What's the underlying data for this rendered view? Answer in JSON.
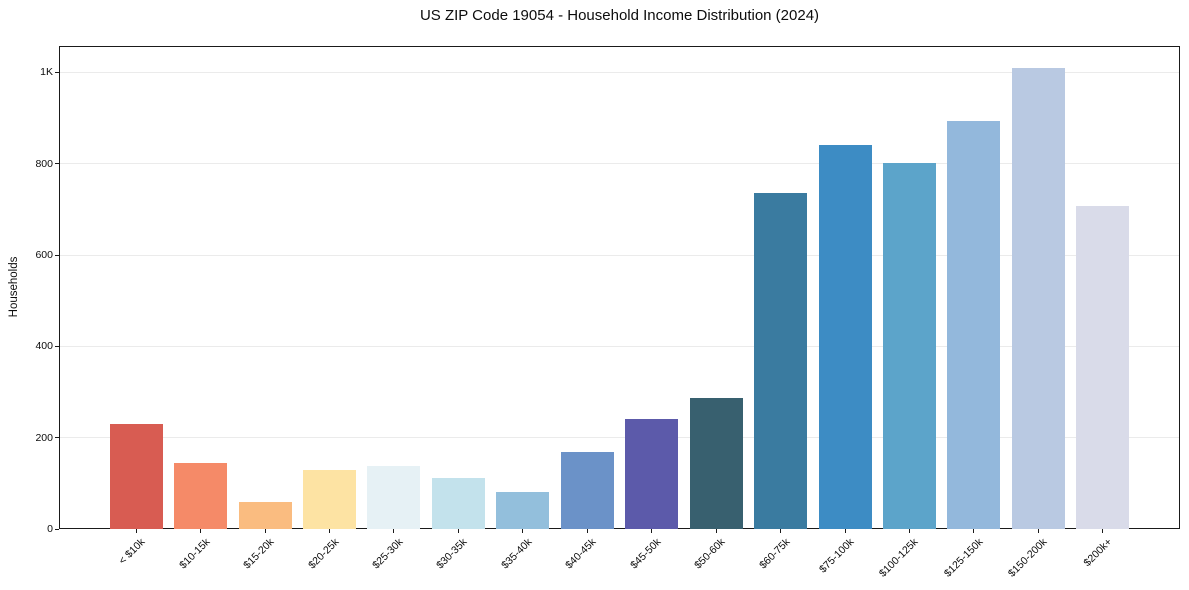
{
  "chart_data": {
    "type": "bar",
    "title": "US ZIP Code 19054 - Household Income Distribution (2024)",
    "xlabel": "",
    "ylabel": "Households",
    "categories": [
      "< $10k",
      "$10-15k",
      "$15-20k",
      "$20-25k",
      "$25-30k",
      "$30-35k",
      "$35-40k",
      "$40-45k",
      "$45-50k",
      "$50-60k",
      "$60-75k",
      "$75-100k",
      "$100-125k",
      "$125-150k",
      "$150-200k",
      "$200k+"
    ],
    "values": [
      230,
      145,
      60,
      130,
      137,
      112,
      82,
      168,
      242,
      288,
      735,
      842,
      802,
      893,
      1010,
      708
    ],
    "bar_colors": [
      "#d85c52",
      "#f58a68",
      "#fabc80",
      "#fde3a3",
      "#e6f1f5",
      "#c3e2ec",
      "#93bfdc",
      "#6b92c8",
      "#5c5aaa",
      "#38606f",
      "#3a7ba0",
      "#3d8cc4",
      "#5ca4ca",
      "#93b8dc",
      "#b9c9e2",
      "#d9dbe9"
    ],
    "ylim": [
      0,
      1058
    ],
    "yticks": {
      "values": [
        0,
        200,
        400,
        600,
        800,
        1000
      ],
      "labels": [
        "0",
        "200",
        "400",
        "600",
        "800",
        "1K"
      ]
    },
    "grid": "horizontal",
    "legend": "none",
    "colors": {
      "background": "#ffffff",
      "grid": "#ebebeb",
      "spine": "#1a1a1a",
      "text": "#0d0d0d"
    }
  }
}
